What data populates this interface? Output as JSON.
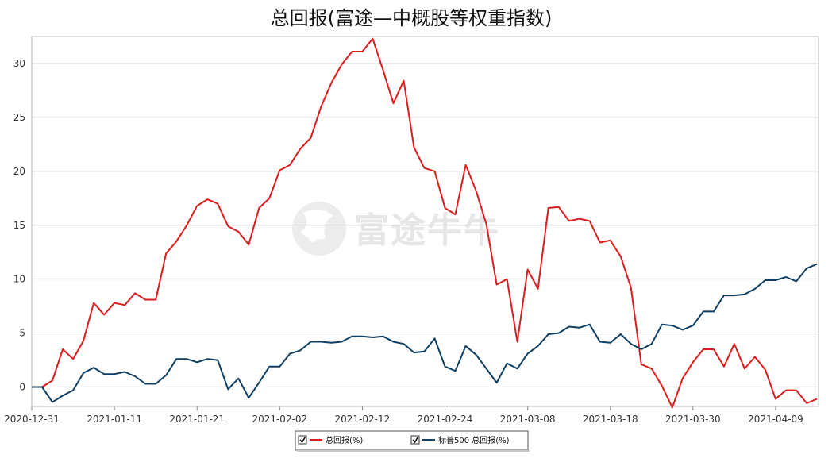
{
  "chart_data": {
    "type": "line",
    "title": "总回报(富途—中概股等权重指数)",
    "xlabel": "",
    "ylabel": "",
    "ylim": [
      -1.8,
      32.5
    ],
    "y_ticks": [
      0,
      5,
      10,
      15,
      20,
      25,
      30
    ],
    "x_tick_labels": [
      "2020-12-31",
      "2021-01-11",
      "2021-01-21",
      "2021-02-02",
      "2021-02-12",
      "2021-02-24",
      "2021-03-08",
      "2021-03-18",
      "2021-03-30",
      "2021-04-09"
    ],
    "x_tick_index": [
      0,
      8,
      16,
      24,
      32,
      40,
      48,
      56,
      64,
      72
    ],
    "grid": "horizontal",
    "legend_position": "bottom-center",
    "watermark": "富途牛牛",
    "series": [
      {
        "name": "总回报(%)",
        "color": "#dd1c1c",
        "values": [
          0,
          0,
          0.6,
          3.5,
          2.6,
          4.3,
          7.8,
          6.7,
          7.8,
          7.6,
          8.7,
          8.1,
          8.1,
          12.4,
          13.5,
          15.0,
          16.8,
          17.4,
          17.0,
          14.9,
          14.4,
          13.2,
          16.6,
          17.5,
          20.1,
          20.6,
          22.1,
          23.1,
          26.0,
          28.2,
          29.9,
          31.1,
          31.1,
          32.3,
          29.4,
          26.3,
          28.4,
          22.2,
          20.3,
          20.0,
          16.6,
          16.0,
          20.6,
          18.2,
          15.1,
          9.5,
          10.0,
          4.2,
          10.9,
          9.1,
          16.6,
          16.7,
          15.4,
          15.6,
          15.4,
          13.4,
          13.6,
          12.1,
          9.2,
          2.1,
          1.7,
          0.1,
          -1.9,
          0.8,
          2.3,
          3.5,
          3.5,
          1.9,
          4.0,
          1.7,
          2.8,
          1.6,
          -1.1,
          -0.3,
          -0.3,
          -1.5,
          -1.1
        ]
      },
      {
        "name": "标普500 总回报(%)",
        "color": "#0e3f63",
        "values": [
          0,
          0,
          -1.4,
          -0.8,
          -0.3,
          1.3,
          1.8,
          1.2,
          1.2,
          1.4,
          1.0,
          0.3,
          0.3,
          1.1,
          2.6,
          2.6,
          2.3,
          2.6,
          2.5,
          -0.2,
          0.8,
          -1.0,
          0.4,
          1.9,
          1.9,
          3.1,
          3.4,
          4.2,
          4.2,
          4.1,
          4.2,
          4.7,
          4.7,
          4.6,
          4.7,
          4.2,
          4.0,
          3.2,
          3.3,
          4.5,
          1.9,
          1.5,
          3.8,
          3.0,
          1.7,
          0.4,
          2.2,
          1.7,
          3.1,
          3.8,
          4.9,
          5.0,
          5.6,
          5.5,
          5.8,
          4.2,
          4.1,
          4.9,
          4.0,
          3.5,
          4.0,
          5.8,
          5.7,
          5.3,
          5.7,
          7.0,
          7.0,
          8.5,
          8.5,
          8.6,
          9.1,
          9.9,
          9.9,
          10.2,
          9.8,
          11.0,
          11.4
        ]
      }
    ]
  }
}
